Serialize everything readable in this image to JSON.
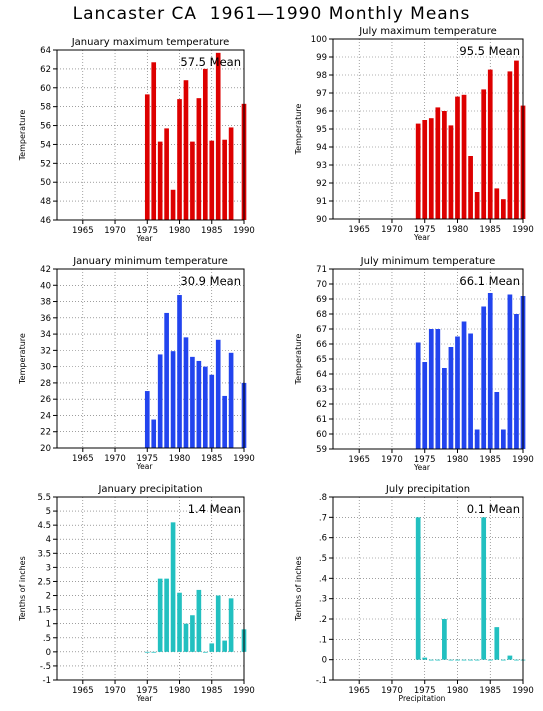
{
  "page": {
    "title": "Lancaster CA  1961—1990 Monthly Means"
  },
  "colors": {
    "red": "#dd0000",
    "blue": "#2244ee",
    "cyan": "#22c0c0"
  },
  "chart_data": [
    {
      "type": "bar",
      "title": "January maximum temperature",
      "ylabel": "Temperature",
      "xlabel": "Year",
      "mean_label": "57.5  Mean",
      "color": "red",
      "ylim": [
        46,
        64
      ],
      "yticks": [
        46,
        48,
        50,
        52,
        54,
        56,
        58,
        60,
        62,
        64
      ],
      "xlim": [
        1961,
        1990
      ],
      "xticks": [
        1965,
        1970,
        1975,
        1980,
        1985,
        1990
      ],
      "x": [
        1975,
        1976,
        1977,
        1978,
        1979,
        1980,
        1981,
        1982,
        1983,
        1984,
        1985,
        1986,
        1987,
        1988,
        1990
      ],
      "values": [
        59.3,
        62.7,
        54.3,
        55.7,
        49.2,
        58.8,
        60.8,
        54.3,
        58.9,
        62.0,
        54.4,
        63.7,
        54.5,
        55.8,
        58.3
      ]
    },
    {
      "type": "bar",
      "title": "July maximum temperature",
      "ylabel": "Temperature",
      "xlabel": "Year",
      "mean_label": "95.5  Mean",
      "color": "red",
      "ylim": [
        90,
        100
      ],
      "yticks": [
        90,
        91,
        92,
        93,
        94,
        95,
        96,
        97,
        98,
        99,
        100
      ],
      "xlim": [
        1961,
        1990
      ],
      "xticks": [
        1965,
        1970,
        1975,
        1980,
        1985,
        1990
      ],
      "x": [
        1974,
        1975,
        1976,
        1977,
        1978,
        1979,
        1980,
        1981,
        1982,
        1983,
        1984,
        1985,
        1986,
        1987,
        1988,
        1989,
        1990
      ],
      "values": [
        95.3,
        95.5,
        95.6,
        96.2,
        96.0,
        95.2,
        96.8,
        96.9,
        93.5,
        91.5,
        97.2,
        98.3,
        91.7,
        91.1,
        98.2,
        98.8,
        96.3
      ]
    },
    {
      "type": "bar",
      "title": "January minimum temperature",
      "ylabel": "Temperature",
      "xlabel": "Year",
      "mean_label": "30.9  Mean",
      "color": "blue",
      "ylim": [
        20,
        42
      ],
      "yticks": [
        20,
        22,
        24,
        26,
        28,
        30,
        32,
        34,
        36,
        38,
        40,
        42
      ],
      "xlim": [
        1961,
        1990
      ],
      "xticks": [
        1965,
        1970,
        1975,
        1980,
        1985,
        1990
      ],
      "x": [
        1975,
        1976,
        1977,
        1978,
        1979,
        1980,
        1981,
        1982,
        1983,
        1984,
        1985,
        1986,
        1987,
        1988,
        1990
      ],
      "values": [
        27.0,
        23.5,
        31.5,
        36.6,
        31.9,
        38.8,
        33.6,
        31.2,
        30.7,
        30.0,
        29.0,
        33.3,
        26.4,
        31.7,
        28.0
      ]
    },
    {
      "type": "bar",
      "title": "July minimum temperature",
      "ylabel": "Temperature",
      "xlabel": "Year",
      "mean_label": "66.1  Mean",
      "color": "blue",
      "ylim": [
        59,
        71
      ],
      "yticks": [
        59,
        60,
        61,
        62,
        63,
        64,
        65,
        66,
        67,
        68,
        69,
        70,
        71
      ],
      "xlim": [
        1961,
        1990
      ],
      "xticks": [
        1965,
        1970,
        1975,
        1980,
        1985,
        1990
      ],
      "x": [
        1974,
        1975,
        1976,
        1977,
        1978,
        1979,
        1980,
        1981,
        1982,
        1983,
        1984,
        1985,
        1986,
        1987,
        1988,
        1989,
        1990
      ],
      "values": [
        66.1,
        64.8,
        67.0,
        67.0,
        64.4,
        65.8,
        66.5,
        67.5,
        66.7,
        60.3,
        68.5,
        69.4,
        62.8,
        60.3,
        69.3,
        68.0,
        69.2
      ]
    },
    {
      "type": "bar",
      "title": "January precipitation",
      "ylabel": "Tenths of inches",
      "xlabel": "Year",
      "mean_label": "1.4  Mean",
      "color": "cyan",
      "ylim": [
        -1,
        5.5
      ],
      "yticks": [
        -1,
        -0.5,
        0,
        0.5,
        1,
        1.5,
        2,
        2.5,
        3,
        3.5,
        4,
        4.5,
        5,
        5.5
      ],
      "xlim": [
        1961,
        1990
      ],
      "xticks": [
        1965,
        1970,
        1975,
        1980,
        1985,
        1990
      ],
      "x": [
        1975,
        1976,
        1977,
        1978,
        1979,
        1980,
        1981,
        1982,
        1983,
        1984,
        1985,
        1986,
        1987,
        1988,
        1990
      ],
      "values": [
        0.0,
        0.0,
        2.6,
        2.6,
        4.6,
        2.1,
        1.0,
        1.3,
        2.2,
        0.0,
        0.3,
        2.0,
        0.4,
        1.9,
        0.8
      ]
    },
    {
      "type": "bar",
      "title": "July precipitation",
      "ylabel": "Tenths of inches",
      "xlabel": "Precipitation",
      "mean_label": "0.1  Mean",
      "color": "cyan",
      "ylim": [
        -0.1,
        0.8
      ],
      "yticks": [
        -0.1,
        0,
        0.1,
        0.2,
        0.3,
        0.4,
        0.5,
        0.6,
        0.7,
        0.8
      ],
      "xlim": [
        1961,
        1990
      ],
      "xticks": [
        1965,
        1970,
        1975,
        1980,
        1985,
        1990
      ],
      "x": [
        1974,
        1975,
        1976,
        1977,
        1978,
        1979,
        1980,
        1981,
        1982,
        1983,
        1984,
        1985,
        1986,
        1987,
        1988,
        1989,
        1990
      ],
      "values": [
        0.7,
        0.01,
        0.0,
        0.0,
        0.2,
        0.0,
        0.0,
        0.0,
        0.0,
        0.0,
        0.7,
        0.0,
        0.16,
        0.0,
        0.02,
        0.0,
        0.0
      ]
    }
  ]
}
